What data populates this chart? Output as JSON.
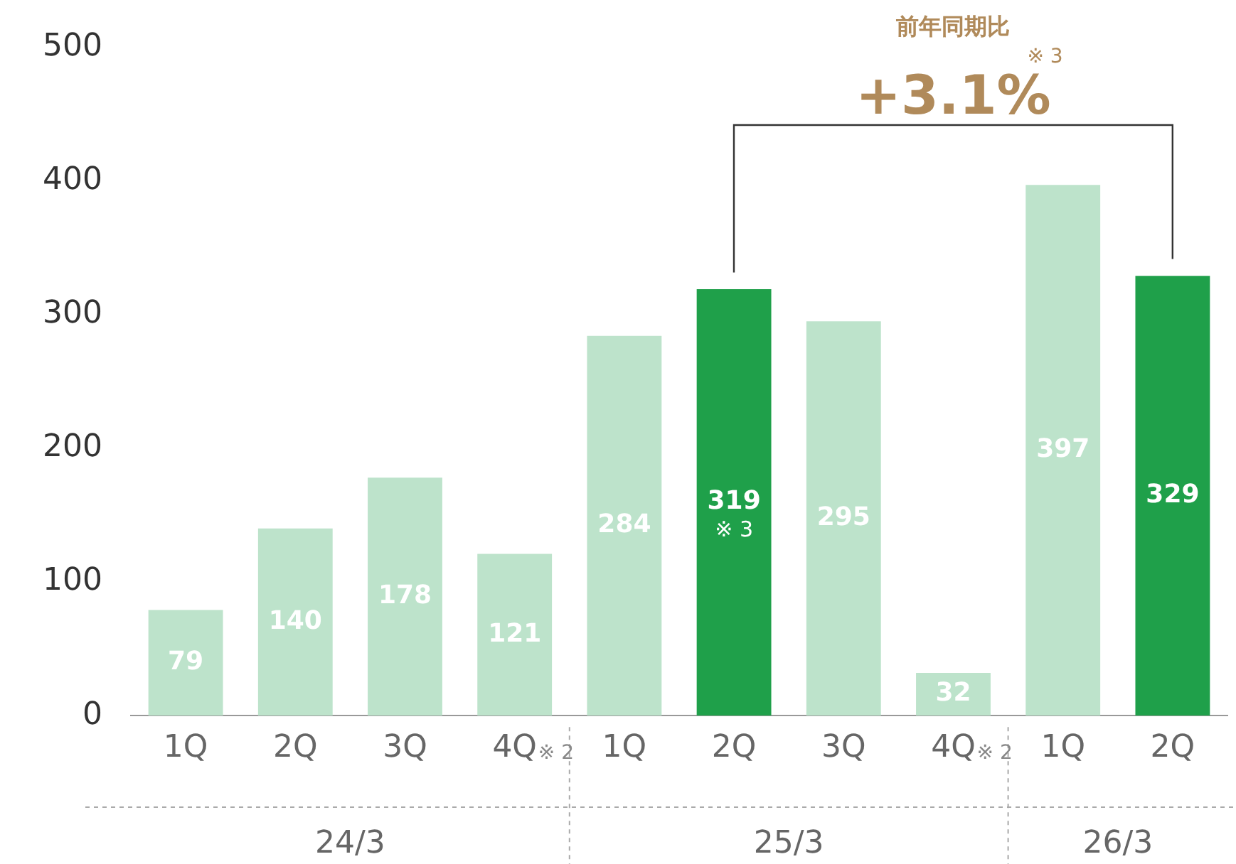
{
  "chart_data": {
    "type": "bar",
    "categories": [
      "1Q",
      "2Q",
      "3Q",
      "4Q",
      "1Q",
      "2Q",
      "3Q",
      "4Q",
      "1Q",
      "2Q"
    ],
    "values": [
      79,
      140,
      178,
      121,
      284,
      319,
      295,
      32,
      397,
      329
    ],
    "colors": [
      "#bde3cb",
      "#bde3cb",
      "#bde3cb",
      "#bde3cb",
      "#bde3cb",
      "#1fa04a",
      "#bde3cb",
      "#bde3cb",
      "#bde3cb",
      "#1fa04a"
    ],
    "ylim": [
      0,
      500
    ],
    "yticks": [
      0,
      100,
      200,
      300,
      400,
      500
    ],
    "grid": false,
    "legend": false,
    "data_labels": true,
    "annotations": [
      "前年同期比",
      "+3.1%",
      "※ 3",
      "※ 3",
      "※ 2",
      "※ 2",
      "24/3",
      "25/3",
      "26/3"
    ]
  }
}
